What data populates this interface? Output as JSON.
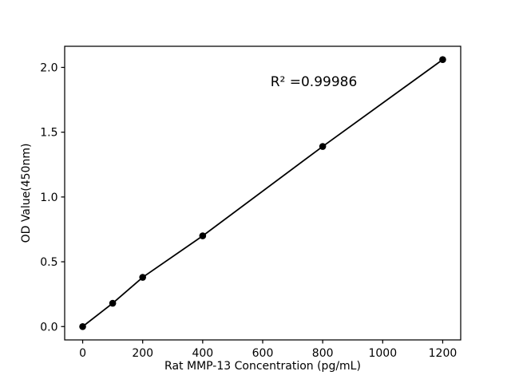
{
  "figure": {
    "background": "#ffffff"
  },
  "chart_data": {
    "type": "line",
    "title": "",
    "xlabel": "Rat MMP-13 Concentration (pg/mL)",
    "ylabel": "OD Value(450nm)",
    "annotation": "R² =0.99986",
    "x": [
      0,
      100,
      200,
      400,
      800,
      1200
    ],
    "y": [
      0.0,
      0.18,
      0.38,
      0.7,
      1.39,
      2.06
    ],
    "xticks": [
      0,
      200,
      400,
      600,
      800,
      1000,
      1200
    ],
    "xtick_labels": [
      "0",
      "200",
      "400",
      "600",
      "800",
      "1000",
      "1200"
    ],
    "yticks": [
      0.0,
      0.5,
      1.0,
      1.5,
      2.0
    ],
    "ytick_labels": [
      "0.0",
      "0.5",
      "1.0",
      "1.5",
      "2.0"
    ],
    "xlim": [
      -60,
      1260
    ],
    "ylim": [
      -0.103,
      2.163
    ],
    "grid": false,
    "legend": "none",
    "marker": "circle",
    "line_color": "#000000",
    "marker_color": "#000000",
    "axis_color": "#000000",
    "text_color": "#000000"
  }
}
